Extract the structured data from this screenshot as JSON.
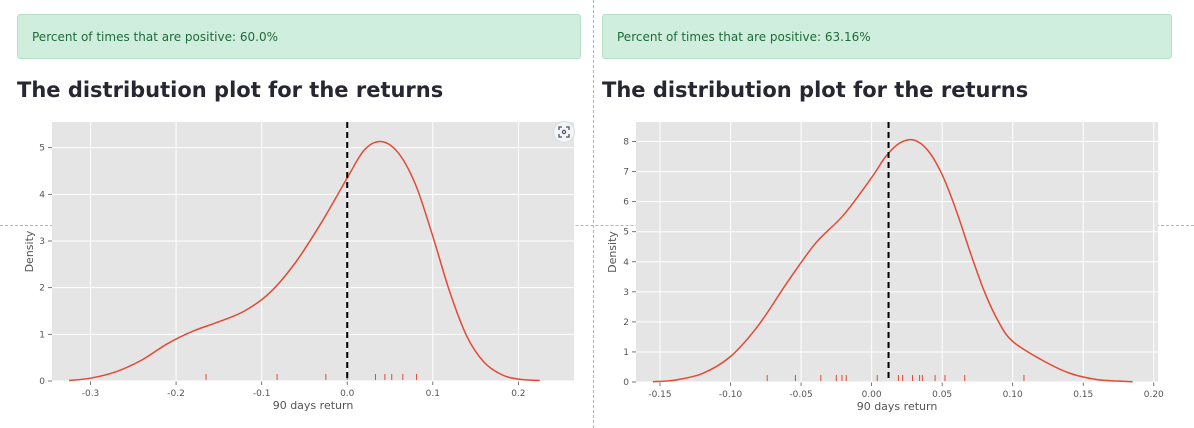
{
  "panels": [
    {
      "alert_text": "Percent of times that are positive: 60.0%",
      "heading": "The distribution plot for the returns",
      "chart_data": {
        "type": "line",
        "title": "",
        "xlabel": "90 days return",
        "ylabel": "Density",
        "xlim": [
          -0.345,
          0.265
        ],
        "ylim": [
          0,
          5.55
        ],
        "xticks": [
          -0.3,
          -0.2,
          -0.1,
          0.0,
          0.1,
          0.2
        ],
        "xtick_labels": [
          "-0.3",
          "-0.2",
          "-0.1",
          "0.0",
          "0.1",
          "0.2"
        ],
        "yticks": [
          0,
          1,
          2,
          3,
          4,
          5
        ],
        "ytick_labels": [
          "0",
          "1",
          "2",
          "3",
          "4",
          "5"
        ],
        "grid": true,
        "series": [
          {
            "x": [
              -0.325,
              -0.3,
              -0.27,
              -0.24,
              -0.21,
              -0.18,
              -0.15,
              -0.12,
              -0.09,
              -0.06,
              -0.03,
              0.0,
              0.02,
              0.04,
              0.06,
              0.08,
              0.1,
              0.12,
              0.14,
              0.16,
              0.18,
              0.2,
              0.225
            ],
            "y": [
              0.01,
              0.06,
              0.2,
              0.45,
              0.8,
              1.07,
              1.27,
              1.5,
              1.9,
              2.55,
              3.4,
              4.35,
              4.95,
              5.13,
              4.88,
              4.2,
              3.1,
              1.9,
              0.95,
              0.4,
              0.14,
              0.04,
              0.01
            ]
          }
        ],
        "rug": [
          -0.165,
          -0.082,
          -0.025,
          0.0,
          0.033,
          0.044,
          0.052,
          0.065,
          0.081
        ],
        "vline": 0.0,
        "colors": {
          "line": "#e24a33",
          "vline": "#000000",
          "plot_bg": "#e5e5e5",
          "grid": "#ffffff"
        }
      }
    },
    {
      "alert_text": "Percent of times that are positive: 63.16%",
      "heading": "The distribution plot for the returns",
      "chart_data": {
        "type": "line",
        "title": "",
        "xlabel": "90 days return",
        "ylabel": "Density",
        "xlim": [
          -0.167,
          0.203
        ],
        "ylim": [
          0,
          8.65
        ],
        "xticks": [
          -0.15,
          -0.1,
          -0.05,
          0.0,
          0.05,
          0.1,
          0.15,
          0.2
        ],
        "xtick_labels": [
          "-0.15",
          "-0.10",
          "-0.05",
          "0.00",
          "0.05",
          "0.10",
          "0.15",
          "0.20"
        ],
        "yticks": [
          0,
          1,
          2,
          3,
          4,
          5,
          6,
          7,
          8
        ],
        "ytick_labels": [
          "0",
          "1",
          "2",
          "3",
          "4",
          "5",
          "6",
          "7",
          "8"
        ],
        "grid": true,
        "series": [
          {
            "x": [
              -0.155,
              -0.14,
              -0.12,
              -0.1,
              -0.08,
              -0.06,
              -0.04,
              -0.02,
              0.0,
              0.01,
              0.02,
              0.03,
              0.04,
              0.05,
              0.06,
              0.07,
              0.08,
              0.09,
              0.1,
              0.12,
              0.14,
              0.16,
              0.185
            ],
            "y": [
              0.01,
              0.06,
              0.28,
              0.85,
              1.9,
              3.3,
              4.6,
              5.55,
              6.8,
              7.5,
              7.95,
              8.05,
              7.7,
              6.9,
              5.7,
              4.3,
              3.0,
              2.0,
              1.35,
              0.75,
              0.3,
              0.08,
              0.01
            ]
          }
        ],
        "rug": [
          -0.074,
          -0.054,
          -0.036,
          -0.025,
          -0.021,
          -0.018,
          0.004,
          0.019,
          0.022,
          0.029,
          0.034,
          0.036,
          0.045,
          0.052,
          0.066,
          0.108
        ],
        "vline": 0.012,
        "colors": {
          "line": "#e24a33",
          "vline": "#000000",
          "plot_bg": "#e5e5e5",
          "grid": "#ffffff"
        }
      }
    }
  ]
}
